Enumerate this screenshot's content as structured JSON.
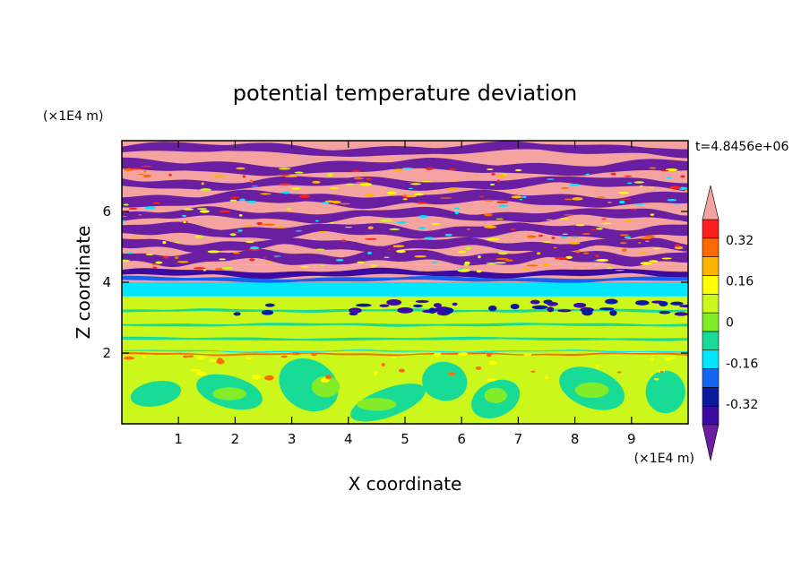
{
  "chart_data": {
    "type": "heatmap",
    "title": "potential temperature deviation",
    "xlabel": "X coordinate",
    "ylabel": "Z coordinate",
    "x_unit": "(×1E4 m)",
    "y_unit": "(×1E4 m)",
    "time_label": "t=4.8456e+06",
    "xlim": [
      0,
      10
    ],
    "ylim": [
      0,
      8
    ],
    "x_ticks": [
      "1",
      "2",
      "3",
      "4",
      "5",
      "6",
      "7",
      "8",
      "9"
    ],
    "y_ticks": [
      "2",
      "4",
      "6"
    ],
    "colorbar": {
      "levels": [
        -0.48,
        -0.4,
        -0.32,
        -0.24,
        -0.16,
        -0.08,
        0,
        0.08,
        0.16,
        0.24,
        0.32,
        0.4,
        0.48
      ],
      "labels": [
        "0.32",
        "0.16",
        "0",
        "-0.16",
        "-0.32"
      ],
      "colors": [
        "#6a1fa2",
        "#3c0aa0",
        "#0a1a9e",
        "#1464f0",
        "#00e6ff",
        "#18dc96",
        "#82ec28",
        "#ccf71a",
        "#ffff00",
        "#ffb400",
        "#ff6a00",
        "#ff1e1e",
        "#f5a3a0"
      ],
      "extend": "both"
    },
    "layers": [
      {
        "z_range": [
          7.0,
          8.0
        ],
        "description_value": "alternating",
        "values": [
          0.5,
          -0.5
        ]
      },
      {
        "z_range": [
          4.5,
          7.0
        ],
        "values": [
          0.5,
          -0.5
        ]
      },
      {
        "z_range": [
          4.0,
          4.5
        ],
        "values": [
          0.36,
          -0.18
        ]
      },
      {
        "z_range": [
          3.6,
          4.0
        ],
        "values": [
          -0.2,
          -0.12
        ]
      },
      {
        "z_range": [
          2.0,
          3.6
        ],
        "values": [
          0.04,
          -0.04
        ]
      },
      {
        "z_range": [
          0.0,
          2.0
        ],
        "values": [
          0.04,
          -0.04
        ]
      }
    ]
  }
}
